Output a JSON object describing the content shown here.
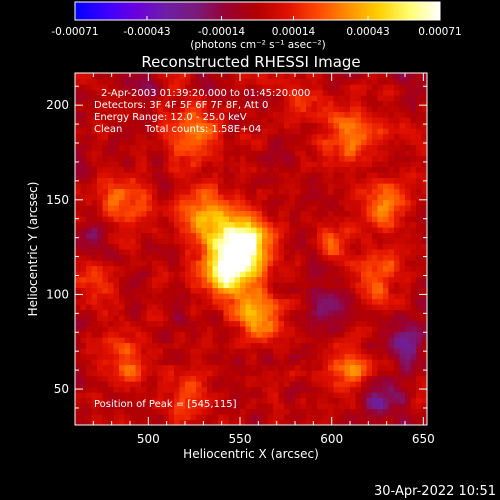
{
  "chart_data": {
    "type": "heatmap",
    "title": "Reconstructed RHESSI Image",
    "xlabel": "Heliocentric X (arcsec)",
    "ylabel": "Heliocentric Y (arcsec)",
    "xlim": [
      460,
      652
    ],
    "ylim": [
      31,
      217
    ],
    "x_ticks": [
      500,
      550,
      600,
      650
    ],
    "y_ticks": [
      50,
      100,
      150,
      200
    ],
    "colorbar": {
      "label": "(photons cm⁻² s⁻¹ asec⁻²)",
      "range": [
        -0.00071,
        0.00071
      ],
      "ticks": [
        "-0.00071",
        "-0.00043",
        "-0.00014",
        "0.00014",
        "0.00043",
        "0.00071"
      ],
      "tick_values": [
        -0.00071,
        -0.00043,
        -0.00014,
        0.00014,
        0.00043,
        0.00071
      ],
      "colormap": [
        "#0000ff",
        "#3a00ff",
        "#6a00dd",
        "#6e1fa6",
        "#7a1a7a",
        "#9a0030",
        "#b40000",
        "#e01000",
        "#ff4a00",
        "#ff9000",
        "#ffd000",
        "#ffff70",
        "#ffffff"
      ]
    },
    "annotations": [
      "2-Apr-2003 01:39:20.000 to 01:45:20.000",
      "Detectors: 3F 4F 5F 6F 7F 8F, Att 0",
      "Energy Range: 12.0 - 25.0 keV",
      "Clean",
      "Total counts: 1.58E+04",
      "Position of Peak = [545,115]"
    ],
    "peak": {
      "x": 545,
      "y": 115
    },
    "image": {
      "x_range": [
        460,
        652
      ],
      "y_range": [
        31,
        217
      ],
      "nx": 64,
      "ny": 64,
      "peak_intensity": 0.00071,
      "sources": [
        {
          "x": 545,
          "y": 115,
          "sigma": 11,
          "amp": 1.0
        },
        {
          "x": 553,
          "y": 128,
          "sigma": 9,
          "amp": 0.85
        },
        {
          "x": 532,
          "y": 140,
          "sigma": 10,
          "amp": 0.6
        },
        {
          "x": 560,
          "y": 88,
          "sigma": 9,
          "amp": 0.55
        },
        {
          "x": 525,
          "y": 185,
          "sigma": 10,
          "amp": 0.45
        },
        {
          "x": 610,
          "y": 185,
          "sigma": 11,
          "amp": 0.5
        },
        {
          "x": 630,
          "y": 150,
          "sigma": 9,
          "amp": 0.45
        },
        {
          "x": 625,
          "y": 110,
          "sigma": 9,
          "amp": 0.4
        },
        {
          "x": 610,
          "y": 60,
          "sigma": 10,
          "amp": 0.4
        },
        {
          "x": 490,
          "y": 65,
          "sigma": 10,
          "amp": 0.35
        },
        {
          "x": 470,
          "y": 105,
          "sigma": 8,
          "amp": 0.3
        },
        {
          "x": 485,
          "y": 150,
          "sigma": 9,
          "amp": 0.35
        },
        {
          "x": 600,
          "y": 130,
          "sigma": 6,
          "amp": 0.35
        },
        {
          "x": 585,
          "y": 205,
          "sigma": 7,
          "amp": 0.35
        },
        {
          "x": 520,
          "y": 45,
          "sigma": 8,
          "amp": 0.3
        },
        {
          "x": 640,
          "y": 75,
          "sigma": 7,
          "amp": -0.45
        },
        {
          "x": 625,
          "y": 45,
          "sigma": 8,
          "amp": -0.4
        },
        {
          "x": 600,
          "y": 95,
          "sigma": 7,
          "amp": -0.35
        },
        {
          "x": 470,
          "y": 130,
          "sigma": 7,
          "amp": -0.25
        },
        {
          "x": 500,
          "y": 210,
          "sigma": 6,
          "amp": -0.2
        }
      ]
    }
  },
  "footer": {
    "timestamp": "30-Apr-2022 10:51"
  }
}
